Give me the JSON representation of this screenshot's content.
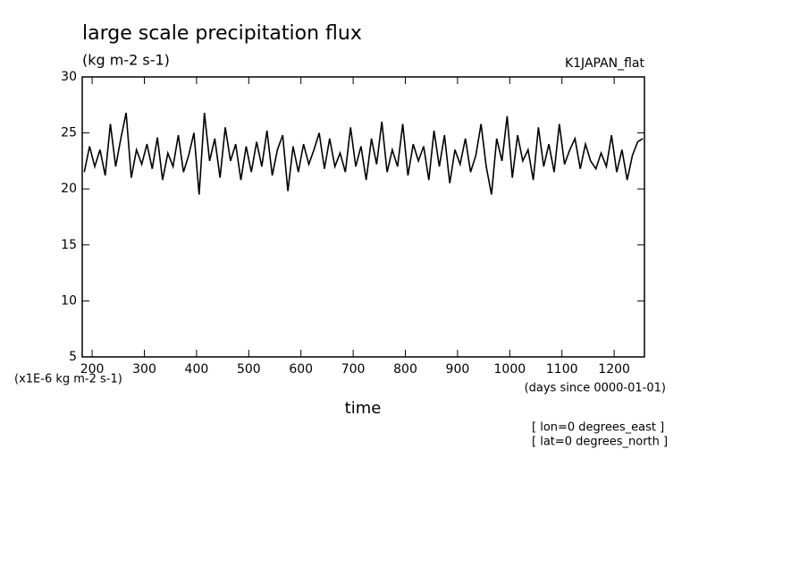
{
  "chart_data": {
    "type": "line",
    "title": "large scale precipitation flux",
    "subtitle": "(kg m-2 s-1)",
    "annotations": [
      "K1JAPAN_flat",
      "(x1E-6 kg m-2 s-1)",
      "(days since 0000-01-01)",
      "[ lon=0 degrees_east ]",
      "[ lat=0 degrees_north ]"
    ],
    "xlabel": "time",
    "x": [
      185,
      195,
      205,
      215,
      225,
      235,
      245,
      255,
      265,
      275,
      285,
      295,
      305,
      315,
      325,
      335,
      345,
      355,
      365,
      375,
      385,
      395,
      405,
      415,
      425,
      435,
      445,
      455,
      465,
      475,
      485,
      495,
      505,
      515,
      525,
      535,
      545,
      555,
      565,
      575,
      585,
      595,
      605,
      615,
      625,
      635,
      645,
      655,
      665,
      675,
      685,
      695,
      705,
      715,
      725,
      735,
      745,
      755,
      765,
      775,
      785,
      795,
      805,
      815,
      825,
      835,
      845,
      855,
      865,
      875,
      885,
      895,
      905,
      915,
      925,
      935,
      945,
      955,
      965,
      975,
      985,
      995,
      1005,
      1015,
      1025,
      1035,
      1045,
      1055,
      1065,
      1075,
      1085,
      1095,
      1105,
      1115,
      1125,
      1135,
      1145,
      1155,
      1165,
      1175,
      1185,
      1195,
      1205,
      1215,
      1225,
      1235,
      1245,
      1255
    ],
    "series": [
      {
        "color": "#000000",
        "values": [
          21.5,
          23.8,
          22.0,
          23.5,
          21.2,
          25.8,
          22.0,
          24.5,
          26.8,
          21.0,
          23.5,
          22.2,
          24.0,
          21.8,
          24.6,
          20.8,
          23.2,
          22.0,
          24.8,
          21.5,
          23.0,
          25.0,
          19.5,
          26.8,
          22.5,
          24.5,
          21.0,
          25.5,
          22.5,
          24.0,
          20.8,
          23.8,
          21.5,
          24.2,
          22.0,
          25.2,
          21.2,
          23.5,
          24.8,
          19.8,
          23.8,
          21.5,
          24.0,
          22.2,
          23.5,
          25.0,
          21.8,
          24.5,
          22.0,
          23.2,
          21.5,
          25.5,
          22.0,
          23.8,
          20.8,
          24.5,
          22.2,
          26.0,
          21.5,
          23.5,
          22.0,
          25.8,
          21.2,
          24.0,
          22.5,
          23.8,
          20.8,
          25.2,
          22.0,
          24.8,
          20.5,
          23.5,
          22.2,
          24.5,
          21.5,
          23.0,
          25.8,
          22.0,
          19.5,
          24.5,
          22.5,
          26.5,
          21.0,
          24.8,
          22.5,
          23.5,
          20.8,
          25.5,
          22.0,
          24.0,
          21.5,
          25.8,
          22.2,
          23.5,
          24.5,
          21.8,
          24.0,
          22.5,
          21.8,
          23.2,
          22.0,
          24.8,
          21.5,
          23.5,
          20.8,
          23.0,
          24.2,
          24.5
        ]
      }
    ],
    "xlim": [
      181,
      1258
    ],
    "xticks": [
      200,
      300,
      400,
      500,
      600,
      700,
      800,
      900,
      1000,
      1100,
      1200
    ],
    "ylim": [
      5,
      30
    ],
    "yticks": [
      5,
      10,
      15,
      20,
      25,
      30
    ]
  }
}
